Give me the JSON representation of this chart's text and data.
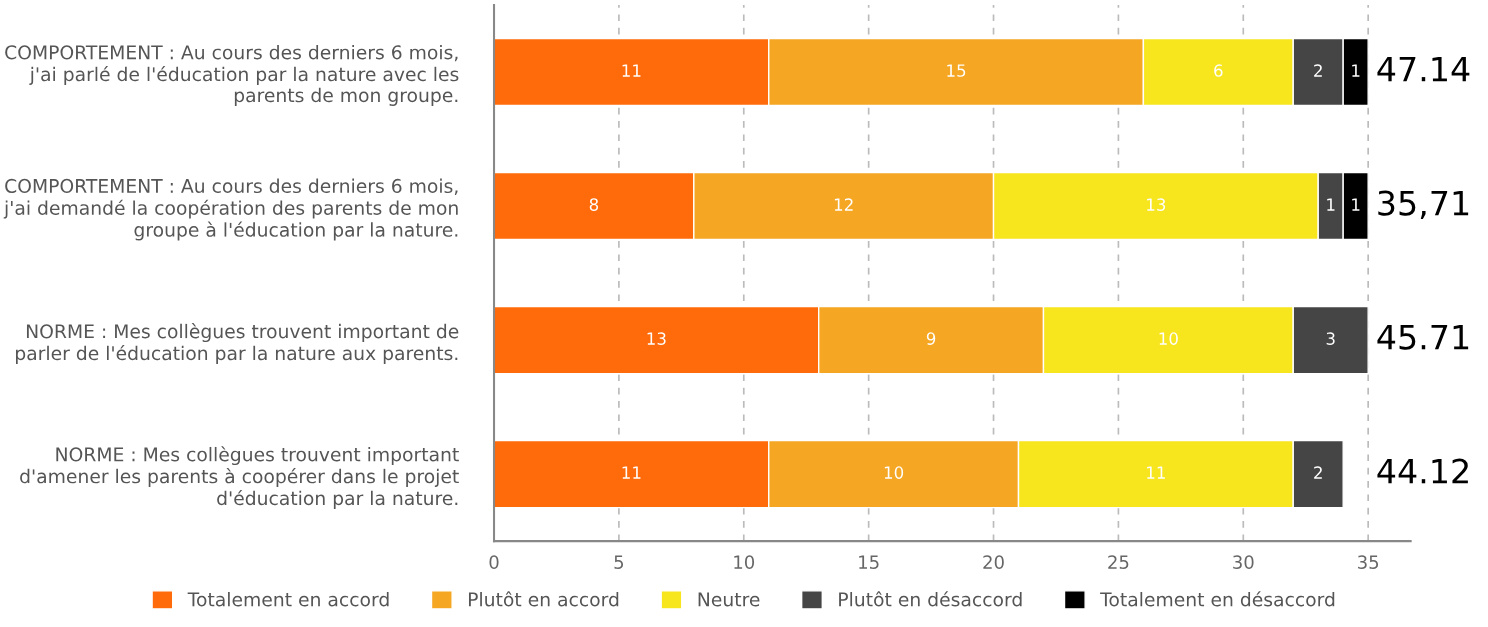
{
  "chart_data": {
    "type": "bar",
    "orientation": "horizontal",
    "stacked": true,
    "data_labels": true,
    "grid": "x",
    "legend": "bottom",
    "categories": [
      "COMPORTEMENT : Au cours des derniers 6 mois, j'ai parlé de l'éducation par la nature avec les parents de mon groupe.",
      "COMPORTEMENT : Au cours des derniers 6 mois, j'ai demandé la coopération des parents de mon groupe à l'éducation par la nature.",
      "NORME : Mes collègues trouvent important de parler de l'éducation par la nature aux parents.",
      "NORME : Mes collègues trouvent important d'amener les parents à coopérer dans le projet d'éducation par la nature."
    ],
    "series": [
      {
        "name": "Totalement en accord",
        "color": "#ff6a0a",
        "values": [
          11,
          8,
          13,
          11
        ]
      },
      {
        "name": "Plutôt en accord",
        "color": "#f5a623",
        "values": [
          15,
          12,
          9,
          10
        ]
      },
      {
        "name": "Neutre",
        "color": "#f7e51e",
        "values": [
          6,
          13,
          10,
          11
        ]
      },
      {
        "name": "Plutôt en désaccord",
        "color": "#454545",
        "values": [
          2,
          1,
          3,
          2
        ]
      },
      {
        "name": "Totalement en désaccord",
        "color": "#000000",
        "values": [
          1,
          1,
          null,
          null
        ]
      }
    ],
    "annotations": [
      "47.14",
      "35,71",
      "45.71",
      "44.12"
    ],
    "xlim": [
      0,
      36.7
    ],
    "xticks": [
      0,
      5,
      10,
      15,
      20,
      25,
      30,
      35
    ]
  }
}
